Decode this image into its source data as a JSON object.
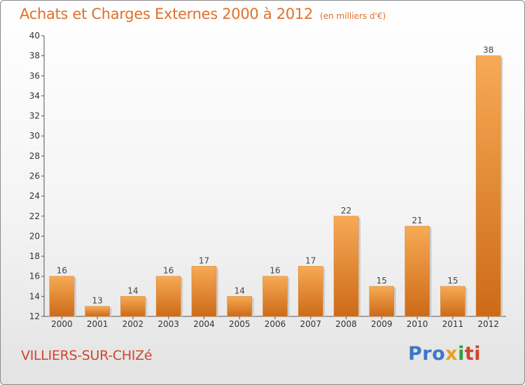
{
  "header": {
    "title": "Achats et Charges Externes 2000 à 2012",
    "unit": "(en milliers d'€)"
  },
  "commune": "VILLIERS-SUR-CHIZé",
  "logo": {
    "text": "Proxiti",
    "parts": [
      "Pro",
      "x",
      "i",
      "ti"
    ],
    "colors": [
      "#3a78c8",
      "#e8a020",
      "#2f9e3a",
      "#d0452a"
    ]
  },
  "colors": {
    "title": "#e0702a",
    "bar_light": "#f5a550",
    "bar_dark": "#cd6a18",
    "commune": "#d0452a"
  },
  "chart_data": {
    "type": "bar",
    "title": "Achats et Charges Externes 2000 à 2012",
    "subtitle": "(en milliers d'€)",
    "xlabel": "",
    "ylabel": "",
    "categories": [
      "2000",
      "2001",
      "2002",
      "2003",
      "2004",
      "2005",
      "2006",
      "2007",
      "2008",
      "2009",
      "2010",
      "2011",
      "2012"
    ],
    "values": [
      16,
      13,
      14,
      16,
      17,
      14,
      16,
      17,
      22,
      15,
      21,
      15,
      38
    ],
    "ylim": [
      12,
      40
    ],
    "yticks": [
      12,
      14,
      16,
      18,
      20,
      22,
      24,
      26,
      28,
      30,
      32,
      34,
      36,
      38,
      40
    ],
    "grid": false,
    "data_labels": true
  }
}
